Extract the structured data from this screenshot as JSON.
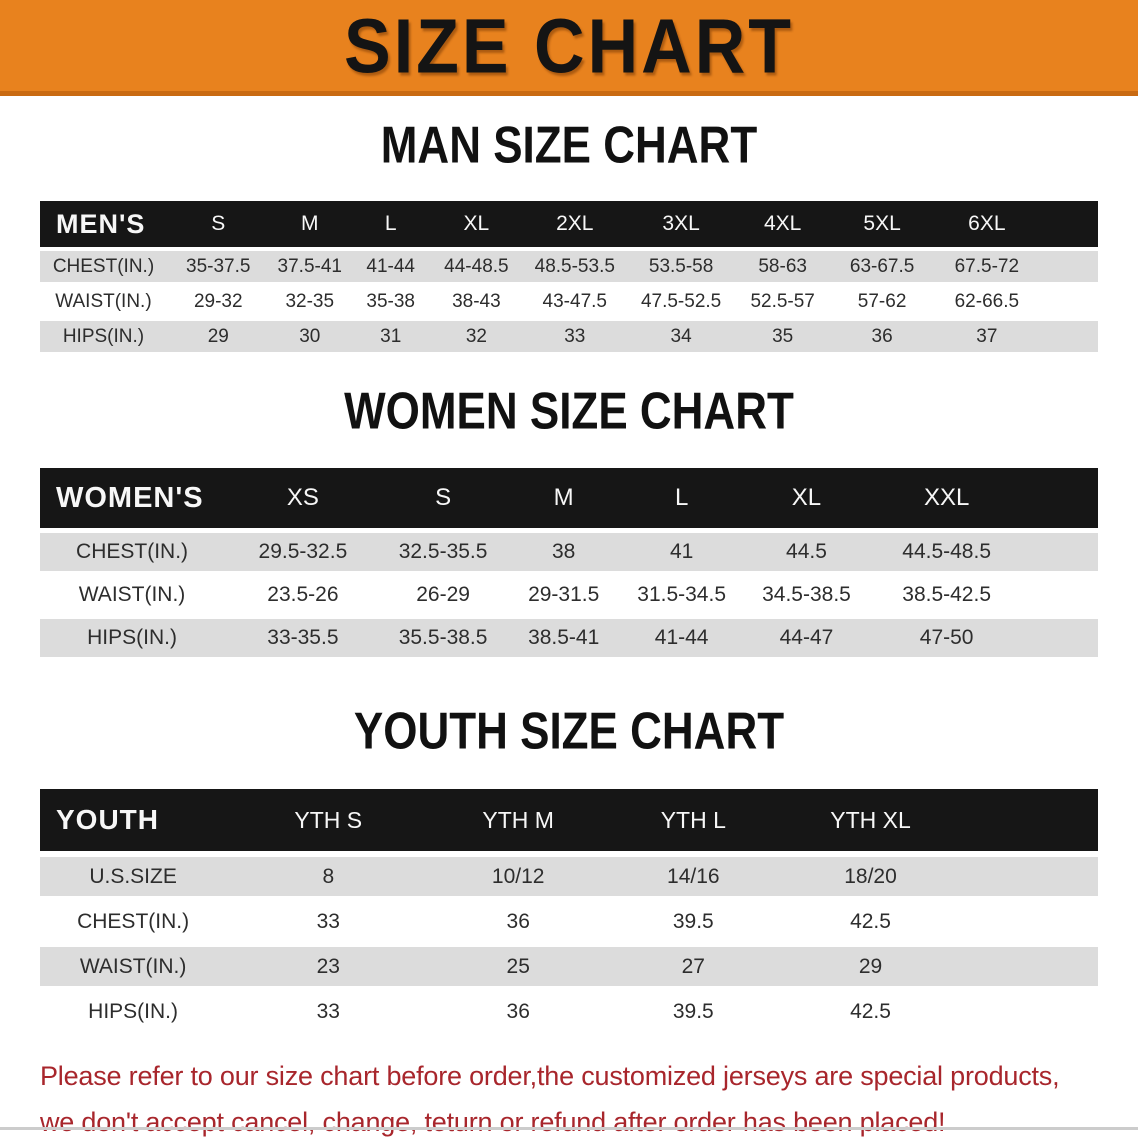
{
  "banner": {
    "title": "SIZE CHART",
    "bg_color": "#E8821E",
    "text_color": "#141414"
  },
  "sections": [
    {
      "heading": "MAN SIZE CHART",
      "table": {
        "header_label": "MEN'S",
        "columns": [
          "S",
          "M",
          "L",
          "XL",
          "2XL",
          "3XL",
          "4XL",
          "5XL",
          "6XL"
        ],
        "rows": [
          {
            "label": "CHEST(IN.)",
            "values": [
              "35-37.5",
              "37.5-41",
              "41-44",
              "44-48.5",
              "48.5-53.5",
              "53.5-58",
              "58-63",
              "63-67.5",
              "67.5-72"
            ]
          },
          {
            "label": "WAIST(IN.)",
            "values": [
              "29-32",
              "32-35",
              "35-38",
              "38-43",
              "43-47.5",
              "47.5-52.5",
              "52.5-57",
              "57-62",
              "62-66.5"
            ]
          },
          {
            "label": "HIPS(IN.)",
            "values": [
              "29",
              "30",
              "31",
              "32",
              "33",
              "34",
              "35",
              "36",
              "37"
            ]
          }
        ]
      }
    },
    {
      "heading": "WOMEN SIZE CHART",
      "table": {
        "header_label": "WOMEN'S",
        "columns": [
          "XS",
          "S",
          "M",
          "L",
          "XL",
          "XXL"
        ],
        "rows": [
          {
            "label": "CHEST(IN.)",
            "values": [
              "29.5-32.5",
              "32.5-35.5",
              "38",
              "41",
              "44.5",
              "44.5-48.5"
            ]
          },
          {
            "label": "WAIST(IN.)",
            "values": [
              "23.5-26",
              "26-29",
              "29-31.5",
              "31.5-34.5",
              "34.5-38.5",
              "38.5-42.5"
            ]
          },
          {
            "label": "HIPS(IN.)",
            "values": [
              "33-35.5",
              "35.5-38.5",
              "38.5-41",
              "41-44",
              "44-47",
              "47-50"
            ]
          }
        ]
      }
    },
    {
      "heading": "YOUTH SIZE CHART",
      "table": {
        "header_label": "YOUTH",
        "columns": [
          "YTH S",
          "YTH M",
          "YTH L",
          "YTH XL"
        ],
        "rows": [
          {
            "label": "U.S.SIZE",
            "values": [
              "8",
              "10/12",
              "14/16",
              "18/20"
            ]
          },
          {
            "label": "CHEST(IN.)",
            "values": [
              "33",
              "36",
              "39.5",
              "42.5"
            ]
          },
          {
            "label": "WAIST(IN.)",
            "values": [
              "23",
              "25",
              "27",
              "29"
            ]
          },
          {
            "label": "HIPS(IN.)",
            "values": [
              "33",
              "36",
              "39.5",
              "42.5"
            ]
          }
        ]
      }
    }
  ],
  "footer_note": {
    "line1": "Please refer to our size chart before order,the customized jerseys are special products,",
    "line2": "we don't accept cancel, change, teturn or refund after order has been placed!",
    "color": "#a8262c"
  },
  "style": {
    "header_row_bg": "#161616",
    "header_row_text": "#f7f7f7",
    "stripe_row_bg": "#dcdcdc"
  }
}
